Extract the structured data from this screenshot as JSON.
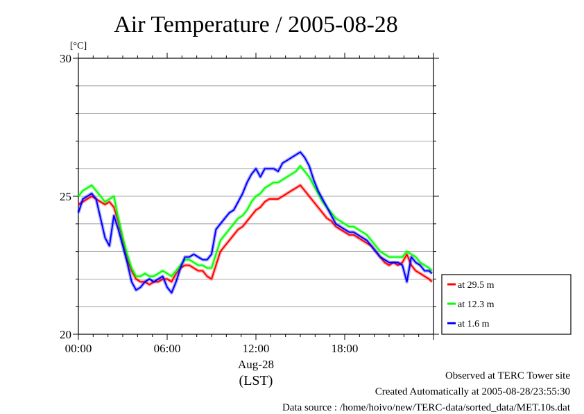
{
  "chart_data": {
    "type": "line",
    "title": "Air Temperature / 2005-08-28",
    "ylabel": "[°C]",
    "ylim": [
      20,
      30
    ],
    "xlim": [
      0,
      24
    ],
    "yticks": [
      20,
      25,
      30
    ],
    "xticks": [
      0,
      6,
      12,
      18
    ],
    "xtick_labels": [
      "00:00",
      "06:00",
      "12:00",
      "18:00"
    ],
    "date_label": "Aug-28",
    "time_zone_label": "(LST)",
    "grid": true,
    "legend_position": "right",
    "series": [
      {
        "name": "at 29.5 m",
        "color": "#ff0000",
        "x": [
          0.0,
          0.3,
          0.6,
          0.9,
          1.2,
          1.5,
          1.8,
          2.1,
          2.4,
          2.7,
          3.0,
          3.3,
          3.6,
          3.9,
          4.2,
          4.5,
          4.8,
          5.1,
          5.4,
          5.7,
          6.0,
          6.3,
          6.6,
          6.9,
          7.2,
          7.5,
          7.8,
          8.1,
          8.4,
          8.7,
          9.0,
          9.3,
          9.6,
          9.9,
          10.2,
          10.5,
          10.8,
          11.1,
          11.4,
          11.7,
          12.0,
          12.3,
          12.6,
          12.9,
          13.2,
          13.5,
          13.8,
          14.1,
          14.4,
          14.7,
          15.0,
          15.3,
          15.6,
          15.9,
          16.2,
          16.5,
          16.8,
          17.1,
          17.4,
          17.7,
          18.0,
          18.3,
          18.6,
          18.9,
          19.2,
          19.5,
          19.8,
          20.1,
          20.4,
          20.7,
          21.0,
          21.3,
          21.6,
          21.9,
          22.2,
          22.5,
          22.8,
          23.1,
          23.4,
          23.7,
          23.9
        ],
        "values": [
          24.7,
          24.8,
          24.9,
          25.0,
          24.9,
          24.8,
          24.7,
          24.8,
          24.6,
          24.1,
          23.4,
          22.7,
          22.3,
          22.0,
          21.9,
          21.9,
          21.8,
          21.9,
          21.9,
          22.0,
          22.0,
          21.9,
          22.2,
          22.4,
          22.5,
          22.5,
          22.4,
          22.3,
          22.3,
          22.1,
          22.0,
          22.5,
          23.0,
          23.2,
          23.4,
          23.6,
          23.8,
          23.9,
          24.1,
          24.3,
          24.5,
          24.6,
          24.8,
          24.9,
          24.9,
          24.9,
          25.0,
          25.1,
          25.2,
          25.3,
          25.4,
          25.2,
          25.0,
          24.8,
          24.6,
          24.4,
          24.2,
          24.1,
          23.9,
          23.8,
          23.7,
          23.6,
          23.6,
          23.5,
          23.4,
          23.3,
          23.2,
          23.0,
          22.8,
          22.6,
          22.5,
          22.6,
          22.5,
          22.6,
          22.9,
          22.5,
          22.3,
          22.2,
          22.1,
          22.0,
          21.9
        ]
      },
      {
        "name": "at 12.3 m",
        "color": "#00ff00",
        "x": [
          0.0,
          0.3,
          0.6,
          0.9,
          1.2,
          1.5,
          1.8,
          2.1,
          2.4,
          2.7,
          3.0,
          3.3,
          3.6,
          3.9,
          4.2,
          4.5,
          4.8,
          5.1,
          5.4,
          5.7,
          6.0,
          6.3,
          6.6,
          6.9,
          7.2,
          7.5,
          7.8,
          8.1,
          8.4,
          8.7,
          9.0,
          9.3,
          9.6,
          9.9,
          10.2,
          10.5,
          10.8,
          11.1,
          11.4,
          11.7,
          12.0,
          12.3,
          12.6,
          12.9,
          13.2,
          13.5,
          13.8,
          14.1,
          14.4,
          14.7,
          15.0,
          15.3,
          15.6,
          15.9,
          16.2,
          16.5,
          16.8,
          17.1,
          17.4,
          17.7,
          18.0,
          18.3,
          18.6,
          18.9,
          19.2,
          19.5,
          19.8,
          20.1,
          20.4,
          20.7,
          21.0,
          21.3,
          21.6,
          21.9,
          22.2,
          22.5,
          22.8,
          23.1,
          23.4,
          23.7,
          23.9
        ],
        "values": [
          25.0,
          25.2,
          25.3,
          25.4,
          25.2,
          25.0,
          24.8,
          24.9,
          25.0,
          24.2,
          23.5,
          22.9,
          22.4,
          22.1,
          22.1,
          22.2,
          22.1,
          22.1,
          22.2,
          22.3,
          22.2,
          22.1,
          22.3,
          22.5,
          22.7,
          22.7,
          22.6,
          22.5,
          22.5,
          22.4,
          22.4,
          22.9,
          23.4,
          23.6,
          23.8,
          24.0,
          24.2,
          24.3,
          24.5,
          24.8,
          25.0,
          25.1,
          25.3,
          25.4,
          25.5,
          25.5,
          25.6,
          25.7,
          25.8,
          25.9,
          26.1,
          25.9,
          25.7,
          25.4,
          25.1,
          24.8,
          24.6,
          24.4,
          24.2,
          24.1,
          24.0,
          23.9,
          23.9,
          23.8,
          23.7,
          23.6,
          23.4,
          23.2,
          23.0,
          22.9,
          22.8,
          22.8,
          22.8,
          22.8,
          23.0,
          22.9,
          22.8,
          22.6,
          22.5,
          22.4,
          22.3
        ]
      },
      {
        "name": "at 1.6 m",
        "color": "#0000ff",
        "x": [
          0.0,
          0.3,
          0.6,
          0.9,
          1.2,
          1.5,
          1.8,
          2.1,
          2.4,
          2.7,
          3.0,
          3.3,
          3.6,
          3.9,
          4.2,
          4.5,
          4.8,
          5.1,
          5.4,
          5.7,
          6.0,
          6.3,
          6.6,
          6.9,
          7.2,
          7.5,
          7.8,
          8.1,
          8.4,
          8.7,
          9.0,
          9.3,
          9.6,
          9.9,
          10.2,
          10.5,
          10.8,
          11.1,
          11.4,
          11.7,
          12.0,
          12.3,
          12.6,
          12.9,
          13.2,
          13.5,
          13.8,
          14.1,
          14.4,
          14.7,
          15.0,
          15.3,
          15.6,
          15.9,
          16.2,
          16.5,
          16.8,
          17.1,
          17.4,
          17.7,
          18.0,
          18.3,
          18.6,
          18.9,
          19.2,
          19.5,
          19.8,
          20.1,
          20.4,
          20.7,
          21.0,
          21.3,
          21.6,
          21.9,
          22.2,
          22.5,
          22.8,
          23.1,
          23.4,
          23.7,
          23.9
        ],
        "values": [
          24.4,
          24.9,
          25.0,
          25.1,
          24.9,
          24.2,
          23.5,
          23.2,
          24.3,
          23.8,
          23.2,
          22.6,
          21.9,
          21.6,
          21.7,
          21.9,
          22.0,
          21.9,
          22.0,
          22.1,
          21.7,
          21.5,
          21.9,
          22.4,
          22.8,
          22.8,
          22.9,
          22.8,
          22.7,
          22.7,
          22.9,
          23.8,
          24.0,
          24.2,
          24.4,
          24.5,
          24.8,
          25.1,
          25.5,
          25.8,
          26.0,
          25.7,
          26.0,
          26.0,
          26.0,
          25.9,
          26.2,
          26.3,
          26.4,
          26.5,
          26.6,
          26.4,
          26.1,
          25.6,
          25.2,
          24.9,
          24.6,
          24.3,
          24.0,
          23.9,
          23.8,
          23.7,
          23.7,
          23.6,
          23.5,
          23.4,
          23.2,
          23.0,
          22.8,
          22.7,
          22.6,
          22.6,
          22.6,
          22.5,
          21.9,
          22.8,
          22.6,
          22.5,
          22.3,
          22.3,
          22.2
        ]
      }
    ]
  },
  "footer": {
    "line1": "Observed at TERC Tower site",
    "line2": "Created Automatically at 2005-08-28/23:55:30",
    "line3": "Data source : /home/hoivo/new/TERC-data/sorted_data/MET.10s.dat"
  }
}
